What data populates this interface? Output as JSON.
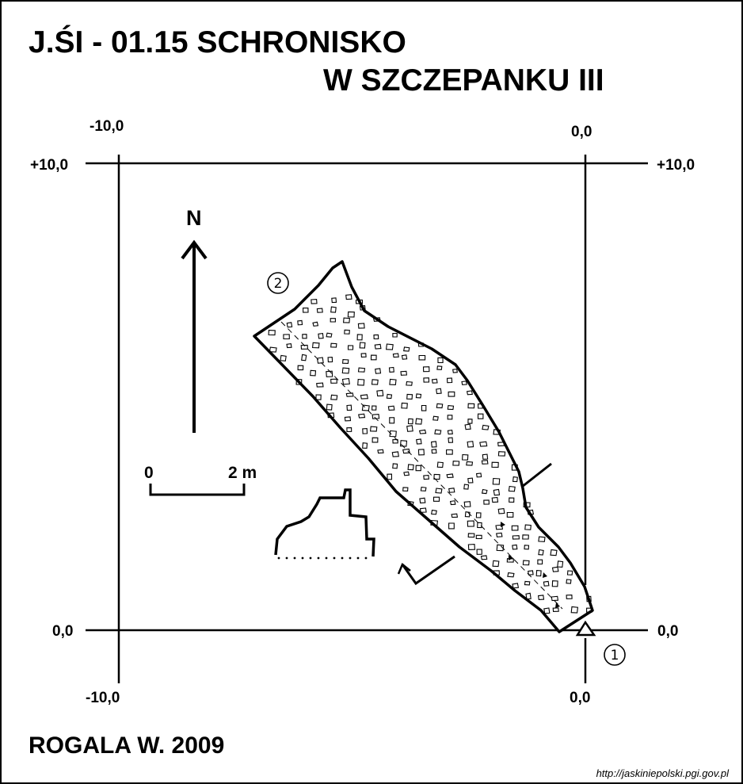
{
  "title": {
    "line1": "J.ŚI - 01.15  SCHRONISKO",
    "line2": "W SZCZEPANKU III"
  },
  "grid": {
    "top_left_x": "-10,0",
    "top_right_x": "0,0",
    "left_top_y": "+10,0",
    "right_top_y": "+10,0",
    "left_bottom_y": "0,0",
    "right_bottom_y": "0,0",
    "bottom_left_x": "-10,0",
    "bottom_right_x": "0,0"
  },
  "north_label": "N",
  "scale": {
    "start": "0",
    "end": "2 m"
  },
  "points": {
    "entrance": "1",
    "end": "2"
  },
  "author": "ROGALA W. 2009",
  "source": "http://jaskiniepolski.pgi.gov.pl",
  "colors": {
    "ink": "#000000",
    "paper": "#ffffff"
  },
  "symbols": {
    "entrance_marker": "triangle-survey-point",
    "floor": "rubble-blocks"
  }
}
